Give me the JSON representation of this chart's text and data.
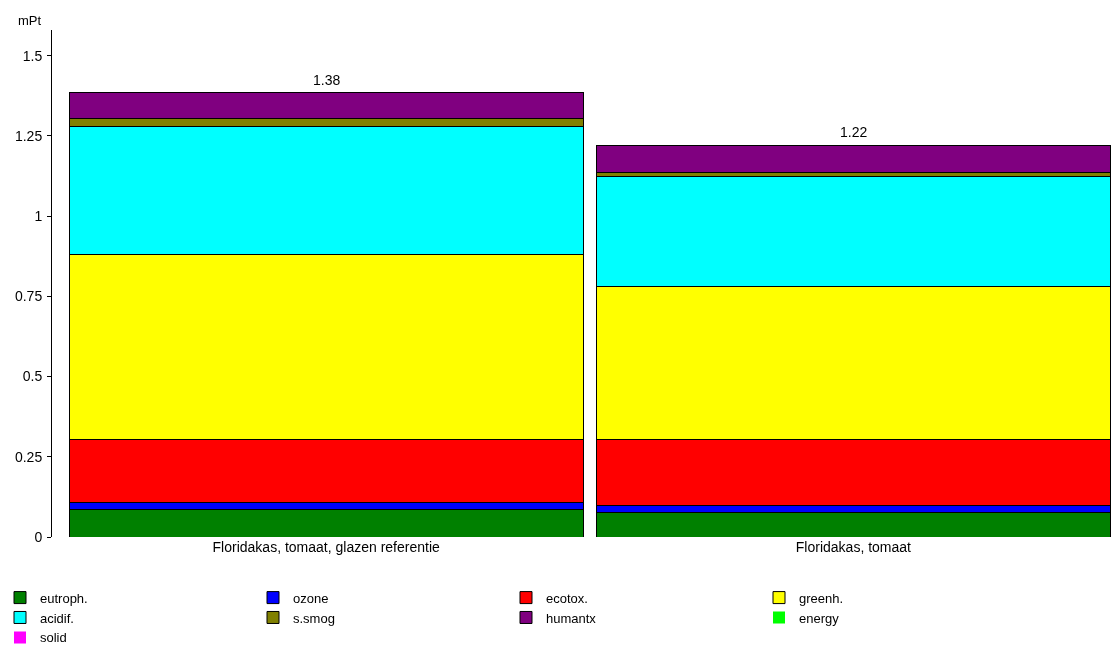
{
  "chart_data": {
    "type": "bar",
    "stacked": true,
    "ylabel": "mPt",
    "categories": [
      "Floridakas, tomaat, glazen referentie",
      "Floridakas, tomaat"
    ],
    "series": [
      {
        "name": "eutroph.",
        "color": "#008000",
        "values": [
          0.085,
          0.076
        ]
      },
      {
        "name": "ozone",
        "color": "#0000ff",
        "values": [
          0.021,
          0.021
        ]
      },
      {
        "name": "ecotox.",
        "color": "#ff0000",
        "values": [
          0.198,
          0.207
        ]
      },
      {
        "name": "greenh.",
        "color": "#ffff00",
        "values": [
          0.577,
          0.476
        ]
      },
      {
        "name": "acidif.",
        "color": "#00ffff",
        "values": [
          0.397,
          0.344
        ]
      },
      {
        "name": "s.smog",
        "color": "#808000",
        "values": [
          0.025,
          0.012
        ]
      },
      {
        "name": "humantx",
        "color": "#800080",
        "values": [
          0.082,
          0.085
        ]
      },
      {
        "name": "energy",
        "color": "#00ff00",
        "values": [
          0,
          0
        ]
      },
      {
        "name": "solid",
        "color": "#ff00ff",
        "values": [
          0,
          0
        ]
      }
    ],
    "totals": [
      "1.38",
      "1.22"
    ],
    "ylim": [
      0,
      1.58
    ],
    "yticks": [
      0,
      0.25,
      0.5,
      0.75,
      1,
      1.25,
      1.5
    ],
    "legend": "bottom"
  }
}
